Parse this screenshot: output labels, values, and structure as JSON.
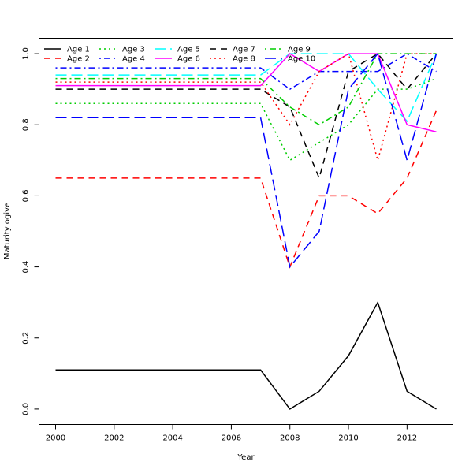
{
  "chart_data": {
    "type": "line",
    "title": "",
    "xlabel": "Year",
    "ylabel": "Maturity ogive",
    "xlim": [
      2000,
      2013
    ],
    "ylim": [
      0,
      1
    ],
    "x_ticks": [
      2000,
      2002,
      2004,
      2006,
      2008,
      2010,
      2012
    ],
    "y_ticks": [
      0.0,
      0.2,
      0.4,
      0.6,
      0.8,
      1.0
    ],
    "y_tick_labels": [
      "0.0",
      "0.2",
      "0.4",
      "0.6",
      "0.8",
      "1.0"
    ],
    "grid": false,
    "legend_placement": "top-left",
    "x": [
      2000,
      2001,
      2002,
      2003,
      2004,
      2005,
      2006,
      2007,
      2008,
      2009,
      2010,
      2011,
      2012,
      2013
    ],
    "series": [
      {
        "name": "Age 1",
        "color": "#000000",
        "dash": "solid",
        "values": [
          0.11,
          0.11,
          0.11,
          0.11,
          0.11,
          0.11,
          0.11,
          0.11,
          0.0,
          0.05,
          0.15,
          0.3,
          0.05,
          0.0
        ]
      },
      {
        "name": "Age 2",
        "color": "#ff0000",
        "dash": "dashed",
        "values": [
          0.65,
          0.65,
          0.65,
          0.65,
          0.65,
          0.65,
          0.65,
          0.65,
          0.4,
          0.6,
          0.6,
          0.55,
          0.65,
          0.84
        ]
      },
      {
        "name": "Age 3",
        "color": "#00cd00",
        "dash": "dotted",
        "values": [
          0.86,
          0.86,
          0.86,
          0.86,
          0.86,
          0.86,
          0.86,
          0.86,
          0.7,
          0.75,
          0.8,
          0.9,
          0.9,
          0.93
        ]
      },
      {
        "name": "Age 4",
        "color": "#0000ff",
        "dash": "dotdash",
        "values": [
          0.96,
          0.96,
          0.96,
          0.96,
          0.96,
          0.96,
          0.96,
          0.96,
          0.9,
          0.95,
          0.95,
          0.95,
          1.0,
          0.95
        ]
      },
      {
        "name": "Age 5",
        "color": "#00ffff",
        "dash": "longdash",
        "values": [
          0.94,
          0.94,
          0.94,
          0.94,
          0.94,
          0.94,
          0.94,
          0.94,
          1.0,
          1.0,
          1.0,
          0.9,
          0.81,
          1.0
        ]
      },
      {
        "name": "Age 6",
        "color": "#ff00ff",
        "dash": "solid",
        "values": [
          0.91,
          0.91,
          0.91,
          0.91,
          0.91,
          0.91,
          0.91,
          0.91,
          1.0,
          0.95,
          1.0,
          1.0,
          0.8,
          0.78
        ]
      },
      {
        "name": "Age 7",
        "color": "#000000",
        "dash": "dashed",
        "values": [
          0.9,
          0.9,
          0.9,
          0.9,
          0.9,
          0.9,
          0.9,
          0.9,
          0.85,
          0.65,
          0.95,
          1.0,
          0.9,
          1.0
        ]
      },
      {
        "name": "Age 8",
        "color": "#ff0000",
        "dash": "dotted",
        "values": [
          0.92,
          0.92,
          0.92,
          0.92,
          0.92,
          0.92,
          0.92,
          0.92,
          0.8,
          0.95,
          1.0,
          0.7,
          1.0,
          1.0
        ]
      },
      {
        "name": "Age 9",
        "color": "#00cd00",
        "dash": "dotdash",
        "values": [
          0.93,
          0.93,
          0.93,
          0.93,
          0.93,
          0.93,
          0.93,
          0.93,
          0.85,
          0.8,
          0.85,
          1.0,
          1.0,
          1.0
        ]
      },
      {
        "name": "Age 10",
        "color": "#0000ff",
        "dash": "longdash",
        "values": [
          0.82,
          0.82,
          0.82,
          0.82,
          0.82,
          0.82,
          0.82,
          0.82,
          0.4,
          0.5,
          0.9,
          1.0,
          0.7,
          1.0
        ]
      }
    ]
  }
}
